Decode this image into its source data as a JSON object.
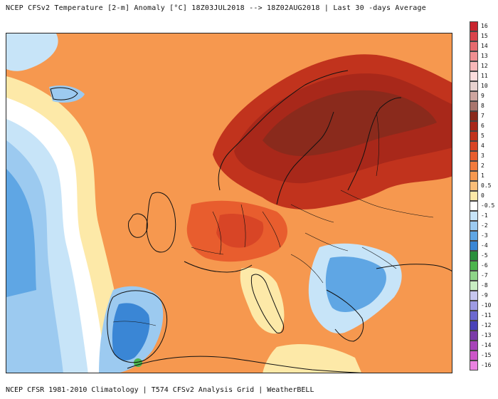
{
  "header": {
    "title": "NCEP CFSv2 Temperature [2-m] Anomaly  [°C] 18Z03JUL2018 --> 18Z02AUG2018 | Last 30 -days Average"
  },
  "footer": {
    "credit": "NCEP CFSR 1981-2010 Climatology | T574 CFSv2 Analysis Grid | WeatherBELL"
  },
  "colorbar": {
    "levels": [
      {
        "label": "16",
        "color": "#c8242e"
      },
      {
        "label": "15",
        "color": "#d9434b"
      },
      {
        "label": "14",
        "color": "#e66a6e"
      },
      {
        "label": "13",
        "color": "#f08f91"
      },
      {
        "label": "12",
        "color": "#f7b7b8"
      },
      {
        "label": "11",
        "color": "#fbdcdc"
      },
      {
        "label": "10",
        "color": "#e8d2cf"
      },
      {
        "label": "9",
        "color": "#cda59f"
      },
      {
        "label": "8",
        "color": "#a8756d"
      },
      {
        "label": "7",
        "color": "#8a2a1c"
      },
      {
        "label": "6",
        "color": "#a8281a"
      },
      {
        "label": "5",
        "color": "#c1331d"
      },
      {
        "label": "4",
        "color": "#d84526"
      },
      {
        "label": "3",
        "color": "#e85d2e"
      },
      {
        "label": "2",
        "color": "#f17a3c"
      },
      {
        "label": "1",
        "color": "#f6984f"
      },
      {
        "label": "0.5",
        "color": "#f9bd78"
      },
      {
        "label": "0",
        "color": "#fde9a8"
      },
      {
        "label": "-0.5",
        "color": "#ffffff"
      },
      {
        "label": "-1",
        "color": "#c7e4f8"
      },
      {
        "label": "-2",
        "color": "#9ccaf0"
      },
      {
        "label": "-3",
        "color": "#5fa6e4"
      },
      {
        "label": "-4",
        "color": "#3a86d5"
      },
      {
        "label": "-5",
        "color": "#2a8f3c"
      },
      {
        "label": "-6",
        "color": "#4cb44d"
      },
      {
        "label": "-7",
        "color": "#8ed488"
      },
      {
        "label": "-8",
        "color": "#c8ecc2"
      },
      {
        "label": "-9",
        "color": "#c7c6ef"
      },
      {
        "label": "-10",
        "color": "#9e9be3"
      },
      {
        "label": "-11",
        "color": "#6c68cf"
      },
      {
        "label": "-12",
        "color": "#4a42b8"
      },
      {
        "label": "-13",
        "color": "#7b3aa8"
      },
      {
        "label": "-14",
        "color": "#a743b8"
      },
      {
        "label": "-15",
        "color": "#cc55c8"
      },
      {
        "label": "-16",
        "color": "#ea82e1"
      }
    ]
  }
}
